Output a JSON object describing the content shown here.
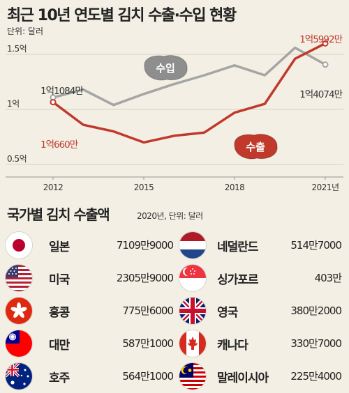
{
  "header": {
    "title": "최근 10년 연도별 김치 수출·수입 현황",
    "unit": "단위: 달러"
  },
  "chart_data": {
    "type": "line",
    "title": "최근 10년 연도별 김치 수출·수입 현황",
    "unit": "단위: 달러",
    "x": [
      2012,
      2013,
      2014,
      2015,
      2016,
      2017,
      2018,
      2019,
      2020,
      2021
    ],
    "xticks": [
      "2012",
      "2015",
      "2018",
      "2021년"
    ],
    "yticks": [
      "1.5억",
      "1억",
      "0.5억"
    ],
    "ylim": [
      0.5,
      1.65
    ],
    "series": [
      {
        "name": "수입",
        "color": "#a5a5a5",
        "values": [
          1.1084,
          1.18,
          1.04,
          1.14,
          1.23,
          1.31,
          1.4,
          1.31,
          1.56,
          1.4074
        ],
        "end_labels": [
          "1억1084만",
          "1억4074만"
        ]
      },
      {
        "name": "수출",
        "color": "#c0392b",
        "values": [
          1.066,
          0.86,
          0.8,
          0.7,
          0.76,
          0.79,
          0.97,
          1.05,
          1.46,
          1.5992
        ],
        "end_labels": [
          "1억660만",
          "1억5992만"
        ]
      }
    ],
    "grid": true
  },
  "exports_section": {
    "title": "국가별 김치 수출액",
    "note": "2020년, 단위: 달러",
    "countries": [
      {
        "name": "일본",
        "value": "7109만9000",
        "flag": "japan-flag-icon"
      },
      {
        "name": "미국",
        "value": "2305만9000",
        "flag": "usa-flag-icon"
      },
      {
        "name": "홍콩",
        "value": "775만6000",
        "flag": "hongkong-flag-icon"
      },
      {
        "name": "대만",
        "value": "587만1000",
        "flag": "taiwan-flag-icon"
      },
      {
        "name": "호주",
        "value": "564만1000",
        "flag": "australia-flag-icon"
      },
      {
        "name": "네덜란드",
        "value": "514만7000",
        "flag": "netherlands-flag-icon"
      },
      {
        "name": "싱가포르",
        "value": "403만",
        "flag": "singapore-flag-icon"
      },
      {
        "name": "영국",
        "value": "380만2000",
        "flag": "uk-flag-icon"
      },
      {
        "name": "캐나다",
        "value": "330만7000",
        "flag": "canada-flag-icon"
      },
      {
        "name": "말레이시아",
        "value": "225만4000",
        "flag": "malaysia-flag-icon"
      }
    ]
  }
}
